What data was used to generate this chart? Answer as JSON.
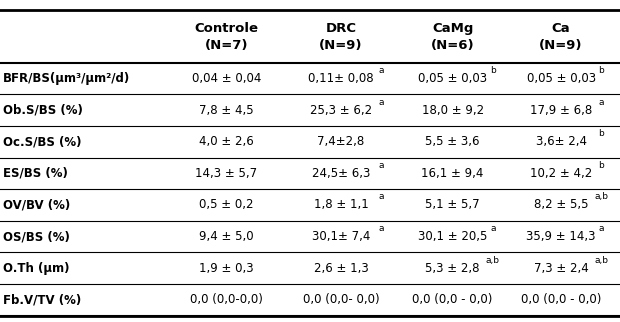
{
  "col_headers": [
    [
      "Controle",
      "(N=7)"
    ],
    [
      "DRC",
      "(N=9)"
    ],
    [
      "CaMg",
      "(N=6)"
    ],
    [
      "Ca",
      "(N=9)"
    ]
  ],
  "rows": [
    {
      "label": "BFR/BS(μm³/μm²/d)",
      "label_bold": true,
      "values": [
        "0,04 ± 0,04",
        "0,11± 0,08",
        "0,05 ± 0,03",
        "0,05 ± 0,03"
      ],
      "superscripts": [
        "",
        "a",
        "b",
        "b"
      ]
    },
    {
      "label": "Ob.S/BS (%)",
      "label_bold": true,
      "values": [
        "7,8 ± 4,5",
        "25,3 ± 6,2",
        "18,0 ± 9,2",
        "17,9 ± 6,8"
      ],
      "superscripts": [
        "",
        "a",
        "",
        "a"
      ]
    },
    {
      "label": "Oc.S/BS (%)",
      "label_bold": true,
      "values": [
        "4,0 ± 2,6",
        "7,4±2,8",
        "5,5 ± 3,6",
        "3,6± 2,4"
      ],
      "superscripts": [
        "",
        "",
        "",
        "b"
      ]
    },
    {
      "label": "ES/BS (%)",
      "label_bold": true,
      "values": [
        "14,3 ± 5,7",
        "24,5± 6,3",
        "16,1 ± 9,4",
        "10,2 ± 4,2"
      ],
      "superscripts": [
        "",
        "a",
        "",
        "b"
      ]
    },
    {
      "label": "OV/BV (%)",
      "label_bold": true,
      "values": [
        "0,5 ± 0,2",
        "1,8 ± 1,1",
        "5,1 ± 5,7",
        "8,2 ± 5,5"
      ],
      "superscripts": [
        "",
        "a",
        "",
        "a,b"
      ]
    },
    {
      "label": "OS/BS (%)",
      "label_bold": true,
      "values": [
        "9,4 ± 5,0",
        "30,1± 7,4",
        "30,1 ± 20,5",
        "35,9 ± 14,3"
      ],
      "superscripts": [
        "",
        "a",
        "a",
        "a"
      ]
    },
    {
      "label": "O.Th (μm)",
      "label_bold": true,
      "values": [
        "1,9 ± 0,3",
        "2,6 ± 1,3",
        "5,3 ± 2,8",
        "7,3 ± 2,4"
      ],
      "superscripts": [
        "",
        "",
        "a,b",
        "a,b"
      ]
    },
    {
      "label": "Fb.V/TV (%)",
      "label_bold": true,
      "values": [
        "0,0 (0,0-0,0)",
        "0,0 (0,0- 0,0)",
        "0,0 (0,0 - 0,0)",
        "0,0 (0,0 - 0,0)"
      ],
      "superscripts": [
        "",
        "",
        "",
        ""
      ]
    }
  ],
  "background_color": "#ffffff",
  "header_line_color": "#000000",
  "row_line_color": "#000000",
  "text_color": "#000000",
  "label_fontsize": 8.5,
  "value_fontsize": 8.5,
  "header_fontsize": 9.5,
  "superscript_fontsize": 6.5
}
